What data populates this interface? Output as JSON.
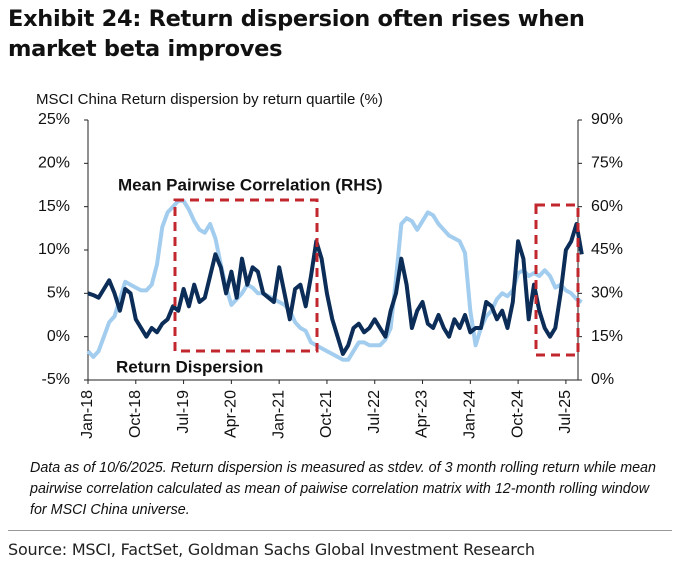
{
  "chart_data": {
    "type": "line",
    "title": "Exhibit 24: Return dispersion often rises when market beta improves",
    "subtitle": "MSCI China Return dispersion by return quartile (%)",
    "footnote": "Data as of 10/6/2025. Return dispersion is measured as stdev. of 3 month rolling return while mean pairwise correlation calculated as mean of paiwise correlation matrix with 12-month rolling window for MSCI China universe.",
    "source": "Source: MSCI, FactSet, Goldman Sachs Global Investment Research",
    "categories": [
      "Jan-18",
      null,
      null,
      null,
      null,
      null,
      null,
      null,
      null,
      "Oct-18",
      null,
      null,
      null,
      null,
      null,
      null,
      null,
      null,
      "Jul-19",
      null,
      null,
      null,
      null,
      null,
      null,
      null,
      null,
      "Apr-20",
      null,
      null,
      null,
      null,
      null,
      null,
      null,
      null,
      "Jan-21",
      null,
      null,
      null,
      null,
      null,
      null,
      null,
      null,
      "Oct-21",
      null,
      null,
      null,
      null,
      null,
      null,
      null,
      null,
      "Jul-22",
      null,
      null,
      null,
      null,
      null,
      null,
      null,
      null,
      "Apr-23",
      null,
      null,
      null,
      null,
      null,
      null,
      null,
      null,
      "Jan-24",
      null,
      null,
      null,
      null,
      null,
      null,
      null,
      null,
      "Oct-24",
      null,
      null,
      null,
      null,
      null,
      null,
      null,
      null,
      "Jul-25",
      null,
      null,
      null
    ],
    "ylim": [
      -5,
      25
    ],
    "yticks": [
      {
        "value": -5,
        "label": "-5%"
      },
      {
        "value": 0,
        "label": "0%"
      },
      {
        "value": 5,
        "label": "5%"
      },
      {
        "value": 10,
        "label": "10%"
      },
      {
        "value": 15,
        "label": "15%"
      },
      {
        "value": 20,
        "label": "20%"
      },
      {
        "value": 25,
        "label": "25%"
      }
    ],
    "y2lim": [
      0,
      90
    ],
    "y2ticks": [
      {
        "value": 0,
        "label": "0%"
      },
      {
        "value": 15,
        "label": "15%"
      },
      {
        "value": 30,
        "label": "30%"
      },
      {
        "value": 45,
        "label": "45%"
      },
      {
        "value": 60,
        "label": "60%"
      },
      {
        "value": 75,
        "label": "75%"
      },
      {
        "value": 90,
        "label": "90%"
      }
    ],
    "grid": false,
    "series": [
      {
        "name": "Return Dispersion",
        "color": "#0b2d57",
        "values": [
          5,
          4.8,
          4.5,
          5.5,
          6.5,
          5,
          3,
          5.5,
          5,
          2,
          1,
          0,
          1,
          0.5,
          1.5,
          2,
          3.5,
          3,
          5.5,
          3.5,
          6,
          4,
          4.5,
          7,
          9.5,
          8,
          5,
          7.5,
          4.5,
          9,
          6,
          8,
          7.5,
          5,
          4.5,
          4,
          8,
          5,
          2,
          5.5,
          6,
          3.5,
          7,
          11,
          9,
          5,
          2,
          0,
          -2,
          -1,
          1,
          1.5,
          0.5,
          1,
          2,
          1,
          0,
          3,
          5,
          9,
          6,
          1,
          3,
          4,
          1.5,
          1,
          2.5,
          1,
          0,
          2,
          1,
          2.5,
          0.5,
          1,
          1,
          4,
          3.5,
          2,
          3,
          1,
          4,
          11,
          9,
          2,
          6,
          3,
          1,
          0,
          1,
          5,
          10,
          11,
          13,
          9.5
        ]
      },
      {
        "name": "Mean Pairwise Correlation (RHS)",
        "color": "#a3cdee",
        "axis": "y2",
        "values": [
          10,
          8,
          10,
          15,
          20,
          22,
          28,
          34,
          33,
          32,
          31,
          31,
          33,
          40,
          53,
          58,
          60,
          62,
          62,
          59,
          55,
          52,
          51,
          54,
          49,
          40,
          32,
          26,
          28,
          30,
          33,
          32,
          30,
          30,
          29,
          28,
          27,
          26,
          24,
          20,
          18,
          17,
          13,
          12,
          11,
          10,
          9,
          8,
          7,
          7,
          10,
          13,
          13,
          12,
          12,
          12,
          14,
          18,
          35,
          54,
          56,
          55,
          52,
          55,
          58,
          57,
          54,
          52,
          50,
          49,
          48,
          44,
          24,
          12,
          18,
          22,
          24,
          28,
          30,
          29,
          31,
          37,
          38,
          36,
          37,
          36,
          38,
          36,
          32,
          33,
          31,
          30,
          28,
          27
        ]
      }
    ]
  }
}
